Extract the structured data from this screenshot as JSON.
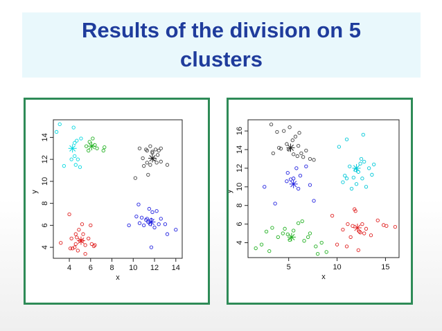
{
  "title": "Results of the division on 5 clusters",
  "chart_data": [
    {
      "type": "scatter",
      "title": "",
      "xlabel": "x",
      "ylabel": "y",
      "xlim": [
        2.5,
        14.6
      ],
      "ylim": [
        3.0,
        15.6
      ],
      "xticks": [
        4,
        6,
        8,
        10,
        12,
        14
      ],
      "yticks": [
        4,
        6,
        8,
        10,
        12,
        14
      ],
      "grid": false,
      "series": [
        {
          "color": "#00d8e0",
          "x": [
            2.8,
            3.1,
            4.4,
            4.2,
            4.5,
            4.8,
            4.6,
            5.0,
            4.5,
            4.7,
            5.1,
            3.5
          ],
          "y": [
            14.5,
            15.2,
            14.9,
            12.0,
            12.3,
            12.0,
            11.5,
            11.3,
            13.5,
            13.7,
            13.9,
            11.4
          ],
          "centroid": [
            4.3,
            13.0
          ]
        },
        {
          "color": "#20b020",
          "x": [
            5.6,
            5.9,
            6.4,
            6.6,
            7.3,
            7.2,
            5.8,
            6.2
          ],
          "y": [
            13.2,
            13.6,
            13.3,
            13.0,
            13.1,
            12.8,
            12.8,
            13.9
          ],
          "centroid": [
            6.1,
            13.2
          ]
        },
        {
          "color": "#e02020",
          "x": [
            3.2,
            4.0,
            4.2,
            4.6,
            4.7,
            4.6,
            4.9,
            5.3,
            5.2,
            5.8,
            6.1,
            6.0,
            4.3,
            4.5,
            4.8,
            5.0,
            5.5,
            6.3,
            6.4,
            5.5,
            5.2,
            4.1
          ],
          "y": [
            4.4,
            7.0,
            4.8,
            5.2,
            4.9,
            4.3,
            5.6,
            5.2,
            4.6,
            4.8,
            4.3,
            6.0,
            3.9,
            4.0,
            3.7,
            4.6,
            4.2,
            4.1,
            4.2,
            3.4,
            6.1,
            3.9
          ],
          "centroid": [
            5.1,
            4.6
          ]
        },
        {
          "color": "#404040",
          "x": [
            10.6,
            10.9,
            11.3,
            11.6,
            11.8,
            12.0,
            12.3,
            11.3,
            11.6,
            12.2,
            12.6,
            10.2,
            11.4,
            12.4,
            12.6,
            13.2,
            12.1,
            11.8,
            11.0,
            11.2
          ],
          "y": [
            13.0,
            12.1,
            12.8,
            13.2,
            12.6,
            12.0,
            12.4,
            11.7,
            11.5,
            11.7,
            11.8,
            10.3,
            10.6,
            12.8,
            13.0,
            11.5,
            12.9,
            12.7,
            11.4,
            12.9
          ],
          "centroid": [
            11.8,
            12.1
          ]
        },
        {
          "color": "#2020e0",
          "x": [
            9.6,
            10.3,
            10.6,
            11.0,
            11.2,
            11.4,
            11.6,
            11.8,
            12.0,
            11.7,
            12.4,
            12.6,
            13.0,
            13.2,
            14.0,
            10.8,
            11.5,
            12.2,
            11.3,
            11.7,
            10.5
          ],
          "y": [
            6.0,
            6.8,
            6.2,
            6.0,
            6.5,
            6.3,
            6.1,
            7.2,
            5.8,
            6.5,
            6.1,
            6.6,
            6.1,
            5.2,
            5.6,
            6.7,
            7.5,
            7.3,
            6.6,
            4.0,
            7.9
          ],
          "centroid": [
            11.7,
            6.3
          ]
        }
      ]
    },
    {
      "type": "scatter",
      "title": "",
      "xlabel": "x",
      "ylabel": "y",
      "xlim": [
        0.8,
        16.4
      ],
      "ylim": [
        2.4,
        17.2
      ],
      "xticks": [
        5,
        10,
        15
      ],
      "yticks": [
        4,
        6,
        8,
        10,
        12,
        14,
        16
      ],
      "grid": false,
      "series": [
        {
          "color": "#404040",
          "x": [
            3.2,
            3.8,
            4.5,
            4.8,
            5.0,
            5.4,
            5.7,
            6.0,
            6.3,
            6.8,
            7.2,
            7.6,
            4.2,
            5.5,
            5.9,
            6.5,
            3.4,
            4.0,
            5.1,
            6.1
          ],
          "y": [
            16.7,
            15.9,
            16.0,
            14.6,
            14.0,
            15.0,
            15.4,
            14.4,
            13.6,
            13.9,
            13.0,
            12.9,
            14.1,
            13.5,
            13.3,
            13.2,
            13.6,
            14.2,
            16.4,
            15.8
          ],
          "centroid": [
            5.2,
            14.2
          ]
        },
        {
          "color": "#00c8d8",
          "x": [
            10.2,
            10.6,
            11.0,
            11.3,
            11.7,
            12.2,
            12.5,
            12.8,
            13.3,
            13.6,
            12.0,
            11.5,
            12.7,
            11.0,
            13.8,
            13.0,
            10.8,
            12.4,
            11.9,
            12.6
          ],
          "y": [
            14.3,
            10.5,
            10.9,
            12.2,
            11.0,
            11.6,
            13.0,
            12.7,
            12.0,
            11.3,
            10.3,
            9.8,
            15.6,
            15.1,
            12.4,
            10.0,
            11.2,
            12.5,
            11.8,
            10.9
          ],
          "centroid": [
            12.0,
            12.0
          ]
        },
        {
          "color": "#2020e0",
          "x": [
            2.5,
            3.6,
            4.8,
            5.5,
            6.2,
            6.8,
            7.2,
            7.6,
            4.9,
            5.8,
            6.0,
            5.2
          ],
          "y": [
            10.0,
            8.2,
            10.6,
            10.9,
            11.2,
            12.2,
            10.2,
            8.5,
            11.5,
            12.0,
            9.8,
            10.8
          ],
          "centroid": [
            5.5,
            10.3
          ]
        },
        {
          "color": "#20b020",
          "x": [
            1.6,
            2.2,
            2.7,
            3.3,
            3.9,
            4.4,
            4.9,
            5.5,
            6.0,
            6.6,
            7.2,
            7.8,
            8.4,
            8.9,
            5.1,
            6.4,
            3.0,
            4.6,
            7.0,
            8.0
          ],
          "y": [
            3.4,
            3.8,
            5.2,
            5.6,
            4.6,
            5.0,
            4.9,
            5.3,
            6.1,
            4.2,
            5.0,
            3.6,
            4.0,
            3.0,
            4.3,
            6.3,
            3.1,
            5.5,
            4.6,
            2.8
          ],
          "centroid": [
            5.3,
            4.6
          ]
        },
        {
          "color": "#e02020",
          "x": [
            9.5,
            10.0,
            10.6,
            11.1,
            11.6,
            11.9,
            12.3,
            12.6,
            13.0,
            13.5,
            14.2,
            15.1,
            16.0,
            11.4,
            12.2,
            11.8,
            12.8,
            14.8,
            11.0,
            12.4
          ],
          "y": [
            6.9,
            3.8,
            5.4,
            6.0,
            5.8,
            7.4,
            5.2,
            6.0,
            5.5,
            4.8,
            6.4,
            5.8,
            5.7,
            4.6,
            3.2,
            7.6,
            5.0,
            5.9,
            3.6,
            5.1
          ],
          "centroid": [
            12.1,
            5.6
          ]
        }
      ]
    }
  ]
}
